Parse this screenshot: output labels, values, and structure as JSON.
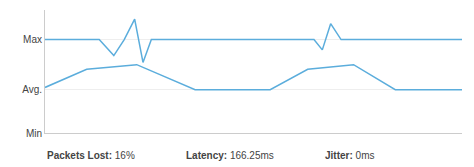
{
  "chart_data": {
    "type": "line",
    "color": "#5baddc",
    "series": [
      {
        "x": [
          0.0,
          0.13,
          0.165,
          0.19,
          0.215,
          0.235,
          0.255,
          0.275,
          0.3,
          0.62,
          0.645,
          0.665,
          0.685,
          0.71,
          1.0
        ],
        "values": [
          0.82,
          0.82,
          0.68,
          0.82,
          1.0,
          0.62,
          0.82,
          0.82,
          0.82,
          0.82,
          0.82,
          0.73,
          0.96,
          0.82,
          0.82
        ]
      },
      {
        "x": [
          0.0,
          0.1,
          0.22,
          0.36,
          0.52,
          0.54,
          0.63,
          0.74,
          0.84,
          1.0
        ],
        "values": [
          0.4,
          0.56,
          0.6,
          0.38,
          0.38,
          0.38,
          0.56,
          0.6,
          0.38,
          0.38
        ]
      }
    ],
    "xlim": [
      0.0,
      1.0
    ],
    "xticks": [],
    "ylim": [
      0.0,
      1.08
    ],
    "yticks": [
      {
        "value": 0.82,
        "label": "Max"
      },
      {
        "value": 0.38,
        "label": "Avg."
      },
      {
        "value": 0.0,
        "label": "Min"
      }
    ],
    "tick_labels": "y",
    "grid": true,
    "annotations": [
      {
        "label": "Packets Lost:",
        "value": "16%"
      },
      {
        "label": "Latency:",
        "value": "166.25ms"
      },
      {
        "label": "Jitter:",
        "value": "0ms"
      }
    ]
  }
}
